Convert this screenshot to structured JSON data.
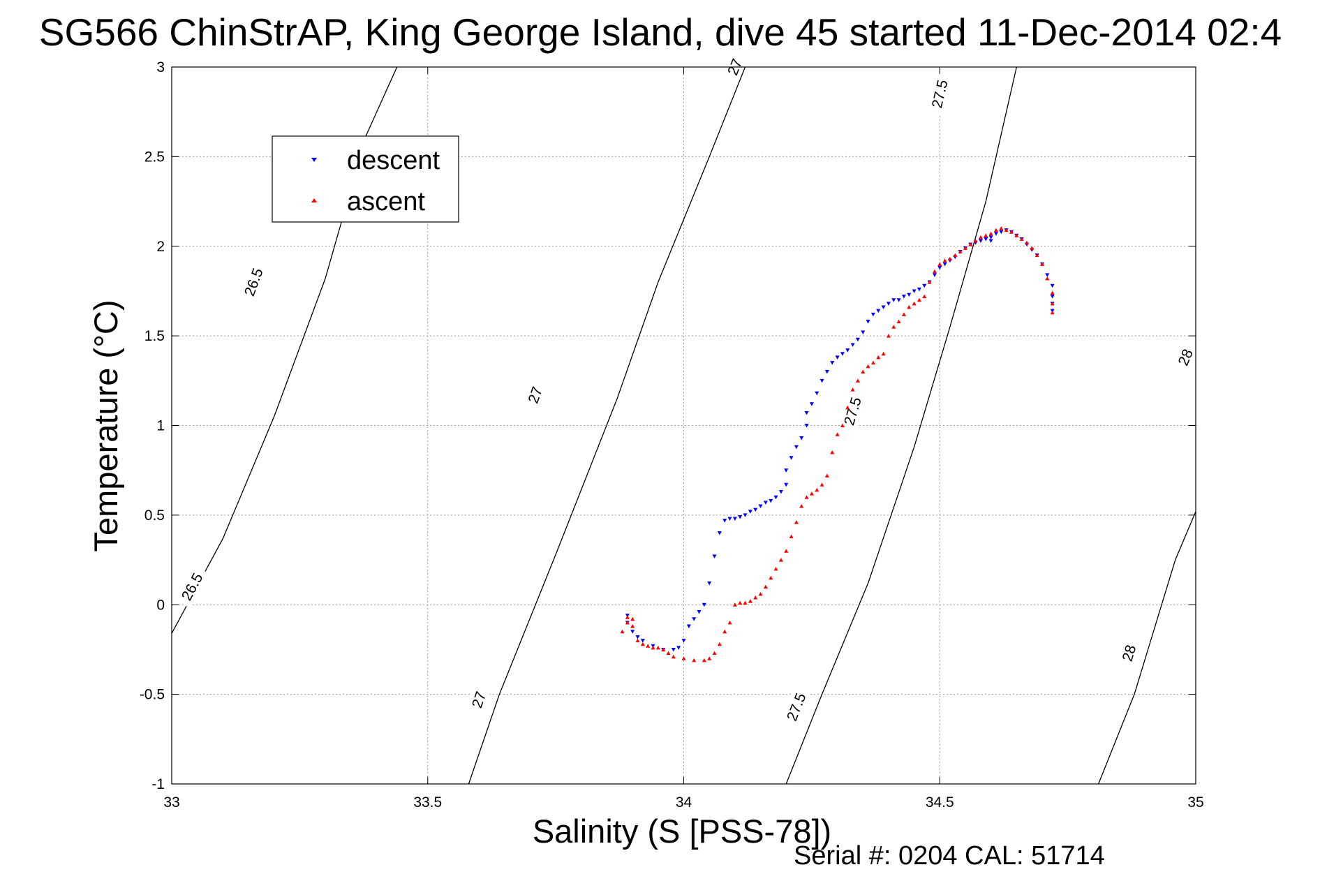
{
  "chart_data": {
    "type": "scatter",
    "title": "SG566 ChinStrAP, King George Island, dive 45 started 11-Dec-2014 02:4",
    "xlabel": "Salinity (S [PSS-78])",
    "ylabel": "Temperature (°C)",
    "footer": "Serial #: 0204  CAL: 51714",
    "xlim": [
      33,
      35
    ],
    "ylim": [
      -1,
      3
    ],
    "x_ticks": [
      33,
      33.5,
      34,
      34.5,
      35
    ],
    "x_tick_labels": [
      "33",
      "33.5",
      "34",
      "34.5",
      "35"
    ],
    "y_ticks": [
      -1,
      -0.5,
      0,
      0.5,
      1,
      1.5,
      2,
      2.5,
      3
    ],
    "y_tick_labels": [
      "-1",
      "-0.5",
      "0",
      "0.5",
      "1",
      "1.5",
      "2",
      "2.5",
      "3"
    ],
    "grid": true,
    "legend_position": "top-left",
    "density_contours": [
      {
        "level": "26.5",
        "points": [
          [
            33.0,
            -0.16
          ],
          [
            33.1,
            0.37
          ],
          [
            33.2,
            1.05
          ],
          [
            33.3,
            1.82
          ],
          [
            33.38,
            2.62
          ],
          [
            33.44,
            3.0
          ]
        ],
        "labels": [
          {
            "x": 33.04,
            "y": 0.1
          },
          {
            "x": 33.16,
            "y": 1.8
          }
        ]
      },
      {
        "level": "27",
        "points": [
          [
            33.58,
            -1.0
          ],
          [
            33.64,
            -0.5
          ],
          [
            33.75,
            0.28
          ],
          [
            33.87,
            1.15
          ],
          [
            33.95,
            1.8
          ],
          [
            34.05,
            2.5
          ],
          [
            34.12,
            3.0
          ]
        ],
        "labels": [
          {
            "x": 33.6,
            "y": -0.53
          },
          {
            "x": 33.71,
            "y": 1.17
          },
          {
            "x": 34.1,
            "y": 3.0
          }
        ]
      },
      {
        "level": "27.5",
        "points": [
          [
            34.2,
            -1.0
          ],
          [
            34.27,
            -0.5
          ],
          [
            34.36,
            0.12
          ],
          [
            34.45,
            0.88
          ],
          [
            34.52,
            1.55
          ],
          [
            34.59,
            2.25
          ],
          [
            34.65,
            3.0
          ]
        ],
        "labels": [
          {
            "x": 34.22,
            "y": -0.57
          },
          {
            "x": 34.33,
            "y": 1.08
          },
          {
            "x": 34.5,
            "y": 2.85
          }
        ]
      },
      {
        "level": "28",
        "points": [
          [
            34.81,
            -1.0
          ],
          [
            34.88,
            -0.5
          ],
          [
            34.96,
            0.25
          ],
          [
            35.0,
            0.52
          ]
        ],
        "labels": [
          {
            "x": 34.87,
            "y": -0.27
          },
          {
            "x": 34.98,
            "y": 1.38
          }
        ]
      }
    ],
    "series": [
      {
        "name": "descent",
        "color": "#0000ff",
        "marker": "triangle-down",
        "x": [
          33.89,
          33.89,
          33.9,
          33.91,
          33.92,
          33.94,
          33.96,
          33.98,
          33.99,
          34.0,
          34.01,
          34.02,
          34.03,
          34.04,
          34.05,
          34.06,
          34.07,
          34.08,
          34.09,
          34.1,
          34.11,
          34.12,
          34.13,
          34.14,
          34.15,
          34.16,
          34.17,
          34.18,
          34.19,
          34.2,
          34.2,
          34.21,
          34.22,
          34.23,
          34.24,
          34.24,
          34.25,
          34.26,
          34.27,
          34.28,
          34.29,
          34.3,
          34.31,
          34.32,
          34.33,
          34.34,
          34.35,
          34.36,
          34.37,
          34.38,
          34.39,
          34.4,
          34.41,
          34.42,
          34.43,
          34.44,
          34.45,
          34.46,
          34.47,
          34.48,
          34.49,
          34.5,
          34.51,
          34.52,
          34.53,
          34.54,
          34.55,
          34.56,
          34.57,
          34.58,
          34.59,
          34.6,
          34.6,
          34.61,
          34.62,
          34.63,
          34.64,
          34.65,
          34.66,
          34.67,
          34.68,
          34.69,
          34.7,
          34.71,
          34.72,
          34.72,
          34.72,
          34.72
        ],
        "y": [
          -0.06,
          -0.1,
          -0.15,
          -0.18,
          -0.2,
          -0.23,
          -0.25,
          -0.25,
          -0.24,
          -0.2,
          -0.12,
          -0.08,
          -0.04,
          0.0,
          0.12,
          0.27,
          0.4,
          0.47,
          0.48,
          0.48,
          0.49,
          0.5,
          0.52,
          0.53,
          0.55,
          0.57,
          0.58,
          0.6,
          0.63,
          0.67,
          0.75,
          0.82,
          0.88,
          0.93,
          1.0,
          1.07,
          1.12,
          1.18,
          1.25,
          1.3,
          1.35,
          1.38,
          1.4,
          1.42,
          1.45,
          1.48,
          1.52,
          1.58,
          1.62,
          1.64,
          1.66,
          1.68,
          1.7,
          1.7,
          1.72,
          1.73,
          1.75,
          1.76,
          1.78,
          1.8,
          1.84,
          1.88,
          1.9,
          1.92,
          1.94,
          1.97,
          1.99,
          2.01,
          2.02,
          2.03,
          2.04,
          2.03,
          2.05,
          2.07,
          2.08,
          2.09,
          2.08,
          2.06,
          2.04,
          2.01,
          1.98,
          1.95,
          1.9,
          1.84,
          1.78,
          1.72,
          1.68,
          1.64
        ]
      },
      {
        "name": "ascent",
        "color": "#ff0000",
        "marker": "triangle-up",
        "x": [
          33.88,
          33.89,
          33.89,
          33.9,
          33.9,
          33.91,
          33.92,
          33.93,
          33.94,
          33.95,
          33.96,
          33.97,
          33.98,
          34.0,
          34.02,
          34.04,
          34.05,
          34.06,
          34.07,
          34.08,
          34.09,
          34.1,
          34.11,
          34.12,
          34.13,
          34.14,
          34.15,
          34.16,
          34.17,
          34.18,
          34.19,
          34.2,
          34.21,
          34.22,
          34.23,
          34.24,
          34.25,
          34.26,
          34.27,
          34.28,
          34.29,
          34.3,
          34.31,
          34.32,
          34.33,
          34.34,
          34.35,
          34.36,
          34.37,
          34.38,
          34.39,
          34.4,
          34.41,
          34.42,
          34.43,
          34.44,
          34.45,
          34.46,
          34.47,
          34.48,
          34.49,
          34.5,
          34.51,
          34.52,
          34.53,
          34.54,
          34.55,
          34.56,
          34.57,
          34.58,
          34.59,
          34.6,
          34.61,
          34.62,
          34.63,
          34.64,
          34.65,
          34.66,
          34.67,
          34.68,
          34.69,
          34.7,
          34.71,
          34.72,
          34.72,
          34.72
        ],
        "y": [
          -0.15,
          -0.1,
          -0.07,
          -0.08,
          -0.12,
          -0.2,
          -0.22,
          -0.23,
          -0.24,
          -0.24,
          -0.25,
          -0.27,
          -0.29,
          -0.3,
          -0.31,
          -0.31,
          -0.3,
          -0.27,
          -0.22,
          -0.15,
          -0.1,
          0.0,
          0.01,
          0.01,
          0.02,
          0.04,
          0.06,
          0.1,
          0.15,
          0.2,
          0.25,
          0.3,
          0.38,
          0.46,
          0.55,
          0.6,
          0.62,
          0.64,
          0.67,
          0.72,
          0.85,
          0.95,
          1.0,
          1.1,
          1.2,
          1.25,
          1.3,
          1.33,
          1.35,
          1.38,
          1.4,
          1.5,
          1.55,
          1.58,
          1.62,
          1.66,
          1.68,
          1.7,
          1.72,
          1.8,
          1.86,
          1.9,
          1.92,
          1.93,
          1.95,
          1.97,
          1.99,
          2.01,
          2.03,
          2.05,
          2.06,
          2.07,
          2.09,
          2.1,
          2.09,
          2.08,
          2.06,
          2.04,
          2.02,
          1.99,
          1.95,
          1.9,
          1.82,
          1.74,
          1.68,
          1.63
        ]
      }
    ]
  }
}
